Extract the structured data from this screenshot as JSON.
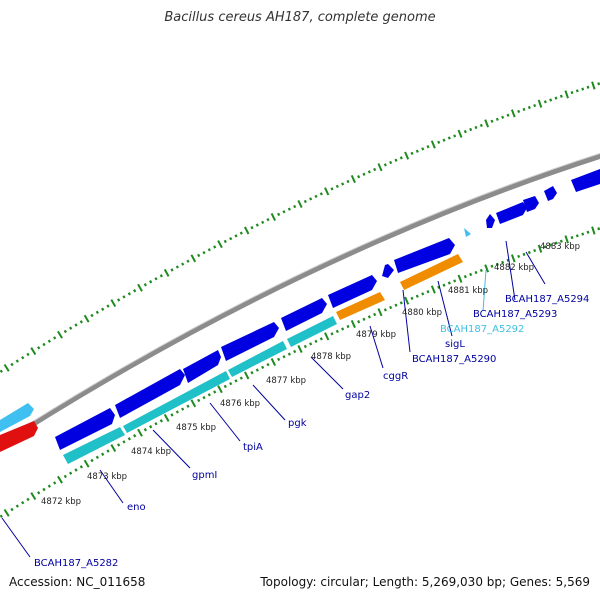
{
  "title": "Bacillus cereus AH187, complete genome",
  "footer": {
    "accession": "Accession: NC_011658",
    "stats": "Topology: circular; Length: 5,269,030 bp; Genes: 5,569"
  },
  "colors": {
    "backbone": "#8c8c8c",
    "tick_green": "#1f8a1f",
    "gene_blue": "#0000e0",
    "gene_cyan": "#20c0c8",
    "gene_orange": "#f08c00",
    "gene_red": "#e01010",
    "label_blue": "#0000a0",
    "label_cyan": "#40c0e0"
  },
  "scale_labels": [
    "4872 kbp",
    "4873 kbp",
    "4874 kbp",
    "4875 kbp",
    "4876 kbp",
    "4877 kbp",
    "4878 kbp",
    "4879 kbp",
    "4880 kbp",
    "4881 kbp",
    "4882 kbp",
    "4883 kbp"
  ],
  "genes": [
    {
      "label": "BCAH187_A5282",
      "color": "label_blue"
    },
    {
      "label": "eno",
      "color": "label_blue"
    },
    {
      "label": "gpmI",
      "color": "label_blue"
    },
    {
      "label": "tpiA",
      "color": "label_blue"
    },
    {
      "label": "pgk",
      "color": "label_blue"
    },
    {
      "label": "gap2",
      "color": "label_blue"
    },
    {
      "label": "cggR",
      "color": "label_blue"
    },
    {
      "label": "BCAH187_A5290",
      "color": "label_blue"
    },
    {
      "label": "sigL",
      "color": "label_blue"
    },
    {
      "label": "BCAH187_A5292",
      "color": "label_cyan"
    },
    {
      "label": "BCAH187_A5293",
      "color": "label_blue"
    },
    {
      "label": "BCAH187_A5294",
      "color": "label_blue"
    }
  ]
}
